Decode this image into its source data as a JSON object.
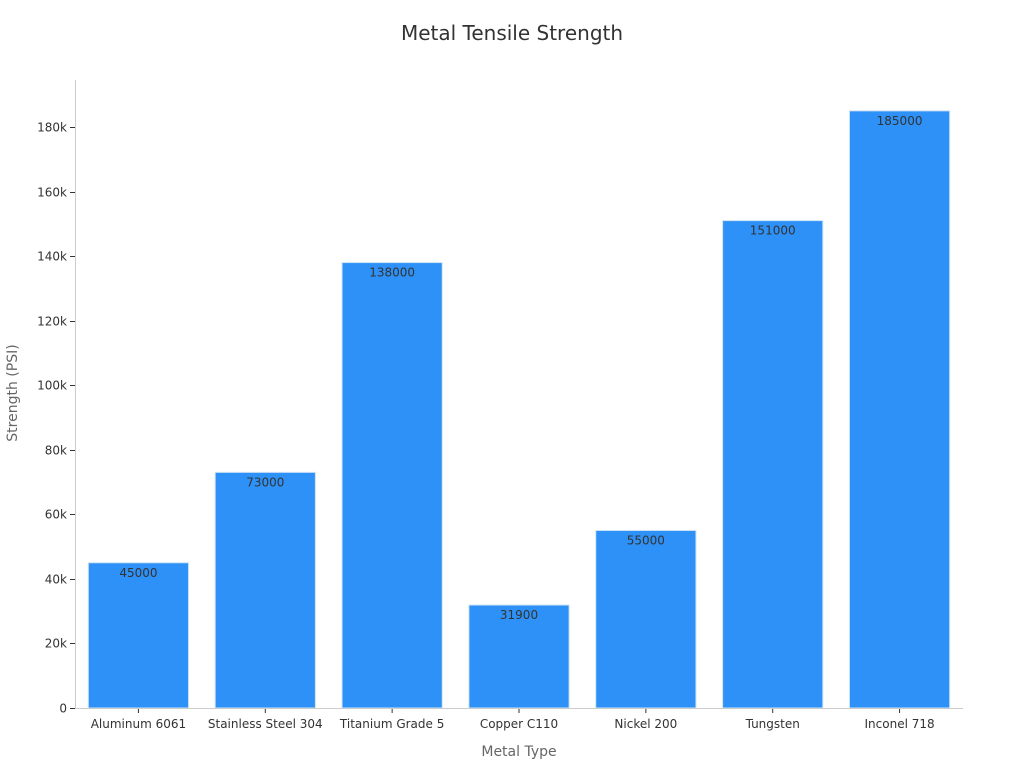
{
  "chart_data": {
    "type": "bar",
    "title": "Metal Tensile Strength",
    "xlabel": "Metal Type",
    "ylabel": "Strength (PSI)",
    "categories": [
      "Aluminum 6061",
      "Stainless Steel 304",
      "Titanium Grade 5",
      "Copper C110",
      "Nickel 200",
      "Tungsten",
      "Inconel 718"
    ],
    "values": [
      45000,
      73000,
      138000,
      31900,
      55000,
      151000,
      185000
    ],
    "data_labels": [
      "45000",
      "73000",
      "138000",
      "31900",
      "55000",
      "151000",
      "185000"
    ],
    "ylim": [
      0,
      195000
    ],
    "yticks": [
      0,
      20000,
      40000,
      60000,
      80000,
      100000,
      120000,
      140000,
      160000,
      180000
    ],
    "ytick_labels": [
      "0",
      "20k",
      "40k",
      "60k",
      "80k",
      "100k",
      "120k",
      "140k",
      "160k",
      "180k"
    ],
    "bar_color": "#2e91f7",
    "grid": false
  }
}
